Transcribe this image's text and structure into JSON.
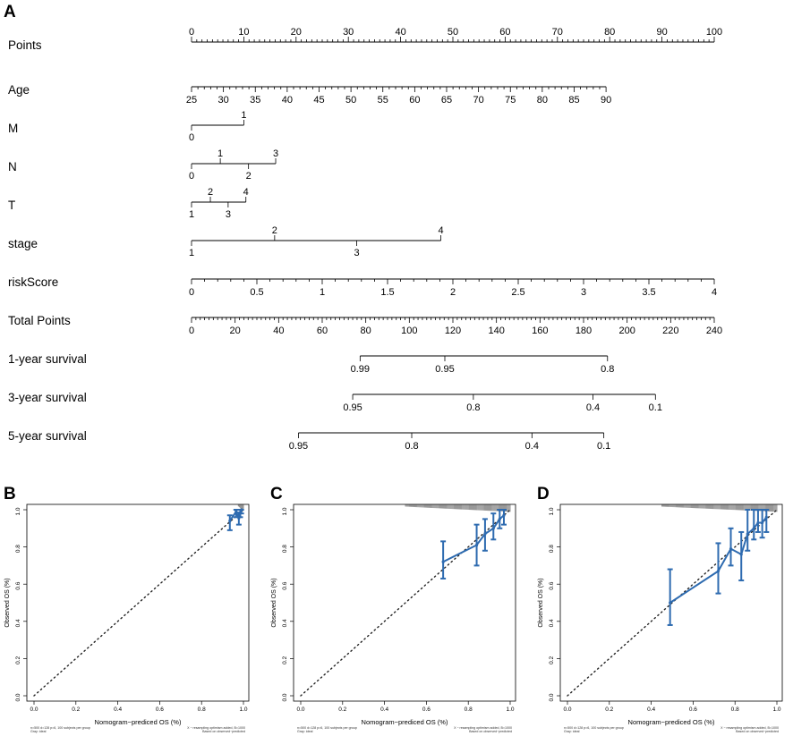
{
  "chart_data": [
    {
      "type": "nomogram",
      "panel": "A",
      "rows": [
        {
          "label": "Points",
          "min": 0,
          "max": 100,
          "ticks": [
            0,
            10,
            20,
            30,
            40,
            50,
            60,
            70,
            80,
            90,
            100
          ],
          "minor_step": 1
        },
        {
          "label": "Age",
          "ticks": [
            "25",
            "30",
            "35",
            "40",
            "45",
            "50",
            "55",
            "60",
            "65",
            "70",
            "75",
            "80",
            "85",
            "90"
          ],
          "points_at_min": 0,
          "points_at_max": 79.3,
          "minor_per_major": 5
        },
        {
          "label": "M",
          "categories": [
            {
              "label": "0",
              "points": 0,
              "side": "below"
            },
            {
              "label": "1",
              "points": 10,
              "side": "above"
            }
          ]
        },
        {
          "label": "N",
          "categories": [
            {
              "label": "0",
              "points": 0,
              "side": "below"
            },
            {
              "label": "1",
              "points": 5.5,
              "side": "above"
            },
            {
              "label": "2",
              "points": 10.9,
              "side": "below"
            },
            {
              "label": "3",
              "points": 16.1,
              "side": "above"
            }
          ]
        },
        {
          "label": "T",
          "categories": [
            {
              "label": "1",
              "points": 0,
              "side": "below"
            },
            {
              "label": "2",
              "points": 3.6,
              "side": "above"
            },
            {
              "label": "3",
              "points": 7.0,
              "side": "below"
            },
            {
              "label": "4",
              "points": 10.4,
              "side": "above"
            }
          ]
        },
        {
          "label": "stage",
          "categories": [
            {
              "label": "1",
              "points": 0,
              "side": "below"
            },
            {
              "label": "2",
              "points": 15.9,
              "side": "above"
            },
            {
              "label": "3",
              "points": 31.6,
              "side": "below"
            },
            {
              "label": "4",
              "points": 47.7,
              "side": "above"
            }
          ]
        },
        {
          "label": "riskScore",
          "ticks": [
            "0",
            "0.5",
            "1",
            "1.5",
            "2",
            "2.5",
            "3",
            "3.5",
            "4"
          ],
          "points_at_min": 0,
          "points_at_max": 100,
          "minor_per_major": 5
        },
        {
          "label": "Total Points",
          "ticks": [
            "0",
            "20",
            "40",
            "60",
            "80",
            "100",
            "120",
            "140",
            "160",
            "180",
            "200",
            "220",
            "240"
          ],
          "total_min": 0,
          "total_max": 240,
          "minor_per_major": 10
        },
        {
          "label": "1-year survival",
          "ticks": [
            {
              "label": "0.99",
              "total": 77.4
            },
            {
              "label": "0.95",
              "total": 116.3
            },
            {
              "label": "0.8",
              "total": 191.0
            }
          ]
        },
        {
          "label": "3-year survival",
          "ticks": [
            {
              "label": "0.95",
              "total": 74.0
            },
            {
              "label": "0.8",
              "total": 129.4
            },
            {
              "label": "0.4",
              "total": 184.3
            },
            {
              "label": "0.1",
              "total": 213.0
            }
          ]
        },
        {
          "label": "5-year survival",
          "ticks": [
            {
              "label": "0.95",
              "total": 49.1
            },
            {
              "label": "0.8",
              "total": 101.1
            },
            {
              "label": "0.4",
              "total": 156.3
            },
            {
              "label": "0.1",
              "total": 189.3
            }
          ]
        }
      ]
    },
    {
      "type": "line",
      "panel": "B",
      "xlabel": "Nomogram−prediced OS (%)",
      "ylabel": "Observed OS (%)",
      "xlim": [
        0,
        1
      ],
      "ylim": [
        0,
        1
      ],
      "ticks": [
        "0.0",
        "0.2",
        "0.4",
        "0.6",
        "0.8",
        "1.0"
      ],
      "reference": "ideal (dotted diagonal)",
      "series": [
        {
          "name": "calibration",
          "x": [
            0.935,
            0.965,
            0.978,
            0.985,
            0.99
          ],
          "y": [
            0.94,
            0.99,
            0.955,
            0.985,
            1.0
          ],
          "lo": [
            0.89,
            0.96,
            0.92,
            0.96,
            0.98
          ],
          "hi": [
            0.97,
            1.0,
            0.985,
            1.0,
            1.0
          ]
        }
      ],
      "rug": {
        "from": 0.975,
        "to": 1.0,
        "tall": 0.035
      },
      "footnote_left": [
        "n=500 d=128 p=6, 100 subjects per group",
        "Gray: ideal"
      ],
      "footnote_right": [
        "X − resampling optimism added, B=1000",
        "Based on observed−predicted"
      ]
    },
    {
      "type": "line",
      "panel": "C",
      "xlabel": "Nomogram−prediced OS (%)",
      "ylabel": "Observed OS (%)",
      "xlim": [
        0,
        1
      ],
      "ylim": [
        0,
        1
      ],
      "ticks": [
        "0.0",
        "0.2",
        "0.4",
        "0.6",
        "0.8",
        "1.0"
      ],
      "reference": "ideal (dotted diagonal)",
      "series": [
        {
          "name": "calibration",
          "x": [
            0.68,
            0.84,
            0.88,
            0.92,
            0.95,
            0.97
          ],
          "y": [
            0.72,
            0.81,
            0.87,
            0.9,
            0.95,
            0.97
          ],
          "lo": [
            0.63,
            0.7,
            0.78,
            0.84,
            0.9,
            0.92
          ],
          "hi": [
            0.83,
            0.92,
            0.95,
            0.98,
            1.0,
            1.0
          ]
        }
      ],
      "rug": {
        "from": 0.5,
        "to": 1.0,
        "tall": 0.04
      },
      "footnote_left": [
        "n=500 d=128 p=6, 100 subjects per group",
        "Gray: ideal"
      ],
      "footnote_right": [
        "X − resampling optimism added, B=1000",
        "Based on observed−predicted"
      ]
    },
    {
      "type": "line",
      "panel": "D",
      "xlabel": "Nomogram−prediced OS (%)",
      "ylabel": "Observed OS (%)",
      "xlim": [
        0,
        1
      ],
      "ylim": [
        0,
        1
      ],
      "ticks": [
        "0.0",
        "0.2",
        "0.4",
        "0.6",
        "0.8",
        "1.0"
      ],
      "reference": "ideal (dotted diagonal)",
      "series": [
        {
          "name": "calibration",
          "x": [
            0.49,
            0.72,
            0.78,
            0.83,
            0.86,
            0.89,
            0.91,
            0.93,
            0.95
          ],
          "y": [
            0.5,
            0.67,
            0.79,
            0.76,
            0.87,
            0.9,
            0.93,
            0.93,
            0.96
          ],
          "lo": [
            0.38,
            0.55,
            0.7,
            0.62,
            0.78,
            0.84,
            0.88,
            0.85,
            0.88
          ],
          "hi": [
            0.68,
            0.82,
            0.9,
            0.88,
            1.0,
            1.0,
            1.0,
            1.0,
            1.0
          ]
        }
      ],
      "rug": {
        "from": 0.45,
        "to": 1.0,
        "tall": 0.04
      },
      "footnote_left": [
        "n=500 d=128 p=6, 100 subjects per group",
        "Gray: ideal"
      ],
      "footnote_right": [
        "X − resampling optimism added, B=1000",
        "Based on observed−predicted"
      ]
    }
  ],
  "colors": {
    "line": "#000000",
    "calibration": "#2e6bb0",
    "ideal": "#222222"
  }
}
